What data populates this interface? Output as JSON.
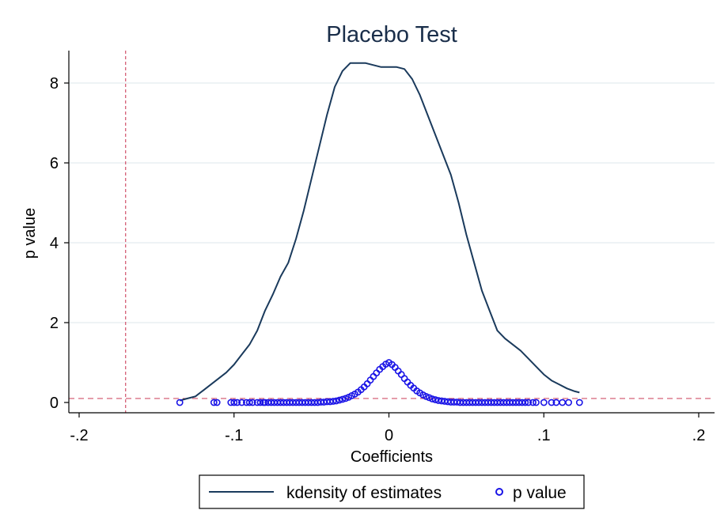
{
  "chart_data": {
    "type": "line",
    "title": "Placebo Test",
    "xlabel": "Coefficients",
    "ylabel": "p value",
    "xlim": [
      -0.2,
      0.2
    ],
    "ylim": [
      0,
      8.8
    ],
    "x_ticks": [
      -0.2,
      -0.1,
      0,
      0.1,
      0.2
    ],
    "x_tick_labels": [
      "-.2",
      "-.1",
      "0",
      ".1",
      ".2"
    ],
    "y_ticks": [
      0,
      2,
      4,
      6,
      8
    ],
    "y_tick_labels": [
      "0",
      "2",
      "4",
      "6",
      "8"
    ],
    "grid": "horizontal",
    "reference_lines": {
      "vertical_x": -0.17,
      "horizontal_y": 0.1,
      "color": "#d0506a"
    },
    "series": [
      {
        "name": "kdensity of estimates",
        "type": "line",
        "color": "#1a3a5c",
        "x": [
          -0.135,
          -0.13,
          -0.125,
          -0.12,
          -0.115,
          -0.11,
          -0.105,
          -0.1,
          -0.095,
          -0.09,
          -0.085,
          -0.08,
          -0.075,
          -0.07,
          -0.065,
          -0.06,
          -0.055,
          -0.05,
          -0.045,
          -0.04,
          -0.035,
          -0.03,
          -0.025,
          -0.02,
          -0.015,
          -0.01,
          -0.005,
          0.0,
          0.005,
          0.01,
          0.015,
          0.02,
          0.025,
          0.03,
          0.035,
          0.04,
          0.045,
          0.05,
          0.055,
          0.06,
          0.065,
          0.07,
          0.075,
          0.08,
          0.085,
          0.09,
          0.095,
          0.1,
          0.105,
          0.11,
          0.115,
          0.12,
          0.123
        ],
        "y": [
          0.05,
          0.1,
          0.15,
          0.3,
          0.45,
          0.6,
          0.75,
          0.95,
          1.2,
          1.45,
          1.8,
          2.3,
          2.7,
          3.15,
          3.5,
          4.1,
          4.8,
          5.6,
          6.4,
          7.2,
          7.9,
          8.3,
          8.5,
          8.5,
          8.5,
          8.45,
          8.4,
          8.4,
          8.4,
          8.35,
          8.1,
          7.7,
          7.2,
          6.7,
          6.2,
          5.7,
          5.0,
          4.2,
          3.5,
          2.8,
          2.3,
          1.8,
          1.6,
          1.45,
          1.3,
          1.1,
          0.9,
          0.7,
          0.55,
          0.45,
          0.35,
          0.28,
          0.25
        ]
      },
      {
        "name": "p value",
        "type": "scatter",
        "color": "#1a14e6",
        "marker": "hollow-circle",
        "x": [
          -0.135,
          -0.113,
          -0.111,
          -0.102,
          -0.1,
          -0.098,
          -0.095,
          -0.092,
          -0.09,
          -0.088,
          -0.085,
          -0.083,
          -0.081,
          -0.08,
          -0.078,
          -0.076,
          -0.074,
          -0.072,
          -0.07,
          -0.068,
          -0.066,
          -0.064,
          -0.062,
          -0.06,
          -0.058,
          -0.056,
          -0.054,
          -0.052,
          -0.05,
          -0.048,
          -0.046,
          -0.044,
          -0.042,
          -0.04,
          -0.038,
          -0.036,
          -0.034,
          -0.032,
          -0.03,
          -0.028,
          -0.026,
          -0.024,
          -0.022,
          -0.02,
          -0.018,
          -0.016,
          -0.014,
          -0.012,
          -0.01,
          -0.008,
          -0.006,
          -0.004,
          -0.002,
          0.0,
          0.002,
          0.004,
          0.006,
          0.008,
          0.01,
          0.012,
          0.014,
          0.016,
          0.018,
          0.02,
          0.022,
          0.024,
          0.026,
          0.028,
          0.03,
          0.032,
          0.034,
          0.036,
          0.038,
          0.04,
          0.042,
          0.044,
          0.046,
          0.048,
          0.05,
          0.052,
          0.054,
          0.056,
          0.058,
          0.06,
          0.062,
          0.064,
          0.066,
          0.068,
          0.07,
          0.072,
          0.074,
          0.076,
          0.078,
          0.08,
          0.082,
          0.084,
          0.086,
          0.088,
          0.09,
          0.093,
          0.095,
          0.1,
          0.105,
          0.108,
          0.112,
          0.116,
          0.123
        ],
        "y": [
          0.0,
          0.0,
          0.0,
          0.0,
          0.0,
          0.0,
          0.0,
          0.0,
          0.0,
          0.0,
          0.0,
          0.0,
          0.0,
          0.0,
          0.0,
          0.0,
          0.0,
          0.0,
          0.0,
          0.0,
          0.0,
          0.0,
          0.0,
          0.0,
          0.0,
          0.0,
          0.0,
          0.0,
          0.0,
          0.0,
          0.0,
          0.01,
          0.01,
          0.02,
          0.02,
          0.03,
          0.04,
          0.06,
          0.08,
          0.1,
          0.13,
          0.17,
          0.21,
          0.26,
          0.32,
          0.39,
          0.47,
          0.56,
          0.65,
          0.74,
          0.83,
          0.9,
          0.96,
          1.0,
          0.95,
          0.88,
          0.79,
          0.7,
          0.6,
          0.51,
          0.43,
          0.36,
          0.29,
          0.24,
          0.19,
          0.15,
          0.12,
          0.09,
          0.07,
          0.05,
          0.04,
          0.03,
          0.02,
          0.01,
          0.01,
          0.01,
          0.0,
          0.0,
          0.0,
          0.0,
          0.0,
          0.0,
          0.0,
          0.0,
          0.0,
          0.0,
          0.0,
          0.0,
          0.0,
          0.0,
          0.0,
          0.0,
          0.0,
          0.0,
          0.0,
          0.0,
          0.0,
          0.0,
          0.0,
          0.0,
          0.0,
          0.0,
          0.0,
          0.0,
          0.0,
          0.0,
          0.0
        ]
      }
    ],
    "legend": {
      "position": "bottom-center",
      "entries": [
        "kdensity of estimates",
        "p value"
      ]
    }
  }
}
